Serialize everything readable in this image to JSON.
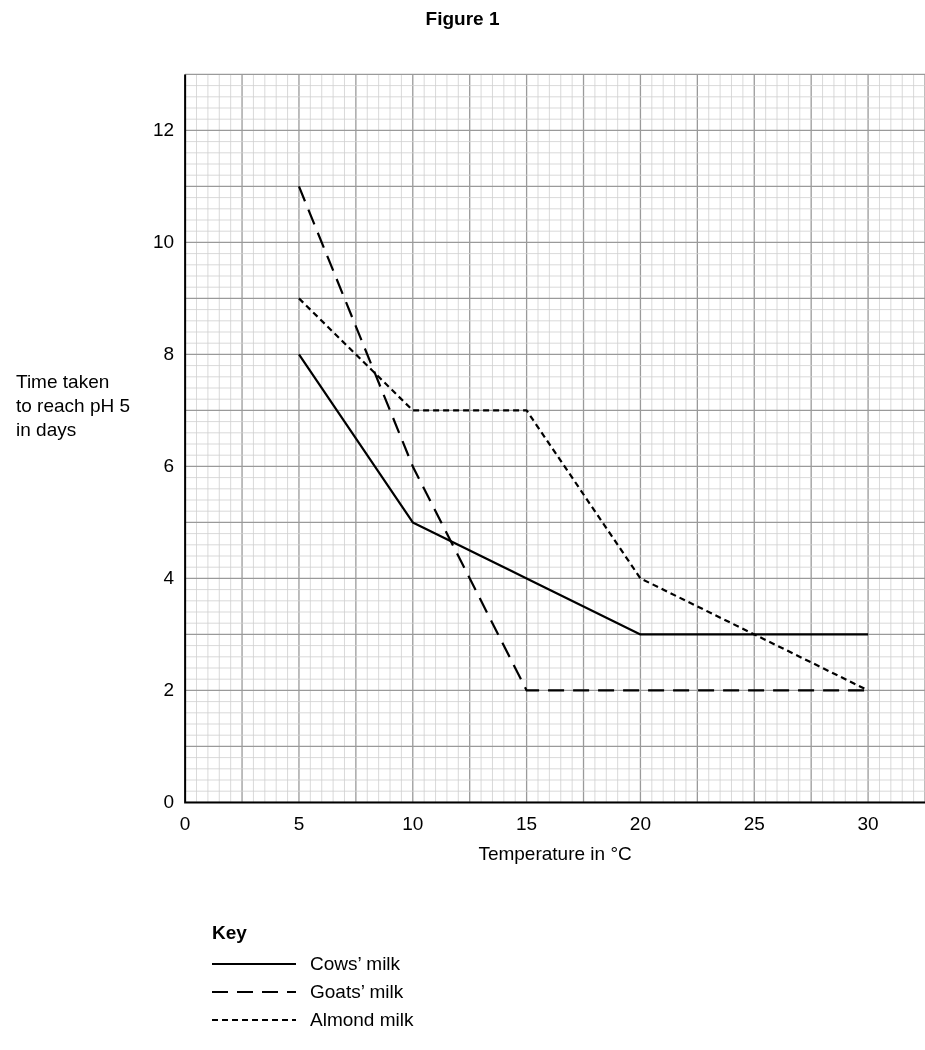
{
  "chart_data": {
    "type": "line",
    "title": "Figure 1",
    "xlabel": "Temperature in °C",
    "ylabel": "Time taken\nto reach pH 5\nin days",
    "legend_title": "Key",
    "legend": "bottom",
    "grid": true,
    "marker": "none",
    "x": [
      5,
      10,
      15,
      20,
      25,
      30
    ],
    "xlim": [
      0,
      32.5
    ],
    "xticks": [
      0,
      5,
      10,
      15,
      20,
      25,
      30
    ],
    "ylim": [
      0,
      13
    ],
    "yticks": [
      0,
      2,
      4,
      6,
      8,
      10,
      12
    ],
    "series": [
      {
        "name": "Cows’ milk",
        "color": "#000000",
        "line_style": "solid",
        "values": [
          8,
          5,
          4,
          3,
          3,
          3
        ]
      },
      {
        "name": "Goats’ milk",
        "color": "#000000",
        "line_style": "dashed",
        "values": [
          11,
          6,
          2,
          2,
          2,
          2
        ]
      },
      {
        "name": "Almond milk",
        "color": "#000000",
        "line_style": "dotted",
        "values": [
          9,
          7,
          7,
          4,
          3,
          2
        ]
      }
    ]
  }
}
